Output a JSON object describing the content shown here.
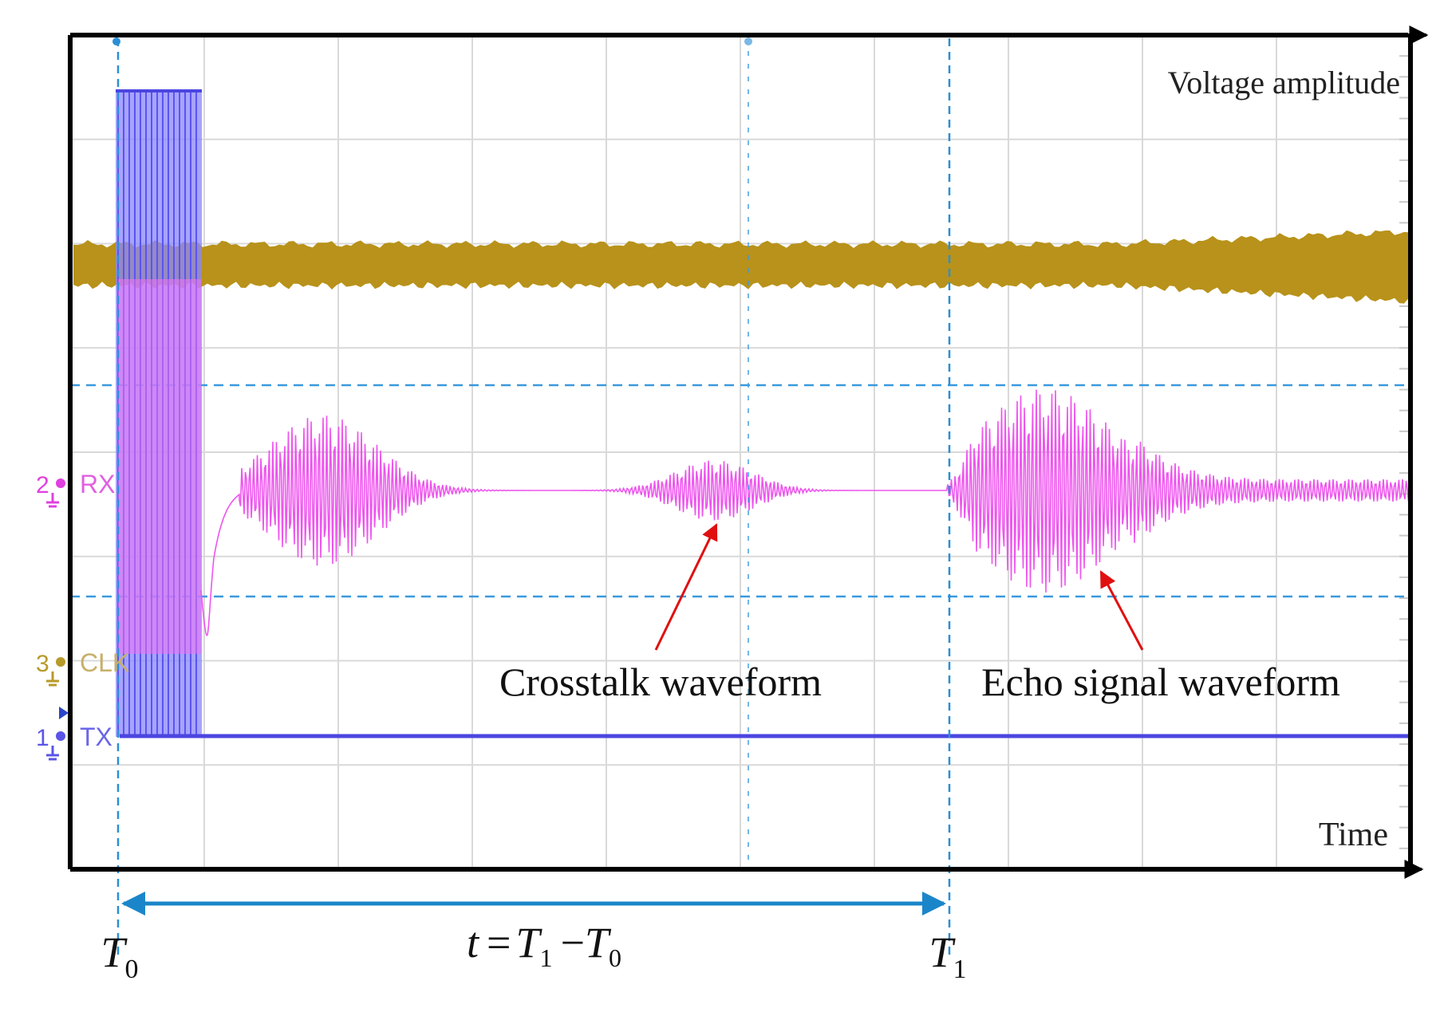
{
  "axes": {
    "y_label": "Voltage amplitude",
    "x_label": "Time"
  },
  "channels": [
    {
      "number": "2",
      "label": "RX",
      "color": "#e040e0"
    },
    {
      "number": "3",
      "label": "CLK",
      "color": "#b89a2a"
    },
    {
      "number": "1",
      "label": "TX",
      "color": "#5a55e6"
    }
  ],
  "annotations": {
    "crosstalk": "Crosstalk waveform",
    "echo": "Echo signal waveform"
  },
  "markers": {
    "t0": {
      "symbol": "T",
      "subscript": "0"
    },
    "t1": {
      "symbol": "T",
      "subscript": "1"
    }
  },
  "equation": {
    "lhs": "t",
    "eq": "=",
    "t1": "T",
    "t1_sub": "1",
    "minus": "−",
    "t0": "T",
    "t0_sub": "0"
  },
  "colors": {
    "frame": "#000000",
    "grid": "#d8d8d8",
    "cursor": "#2a8fd6",
    "arrow": "#e01010",
    "clk": "#b8921a",
    "rx": "#ee55ee",
    "tx": "#4b45e0",
    "tx_burst": "#8a86ff"
  }
}
